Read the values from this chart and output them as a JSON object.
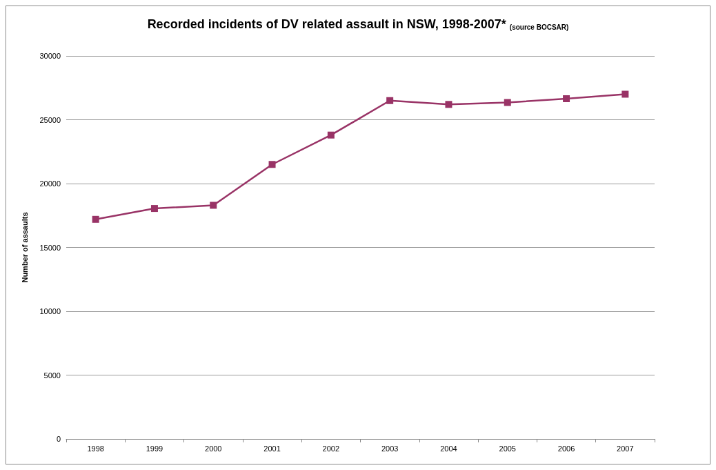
{
  "chart_data": {
    "type": "line",
    "title": "Recorded incidents of DV related assault in NSW, 1998-2007*",
    "subtitle": "(source BOCSAR)",
    "ylabel": "Number of assaults",
    "categories": [
      "1998",
      "1999",
      "2000",
      "2001",
      "2002",
      "2003",
      "2004",
      "2005",
      "2006",
      "2007"
    ],
    "series": [
      {
        "color": "#993366",
        "values": [
          17200,
          18050,
          18300,
          21500,
          23800,
          26500,
          26200,
          26350,
          26650,
          27000
        ]
      }
    ],
    "ylim": [
      0,
      30000
    ],
    "yticks": [
      0,
      5000,
      10000,
      15000,
      20000,
      25000,
      30000
    ],
    "grid": "y",
    "marker": "square",
    "line_style": "solid"
  }
}
